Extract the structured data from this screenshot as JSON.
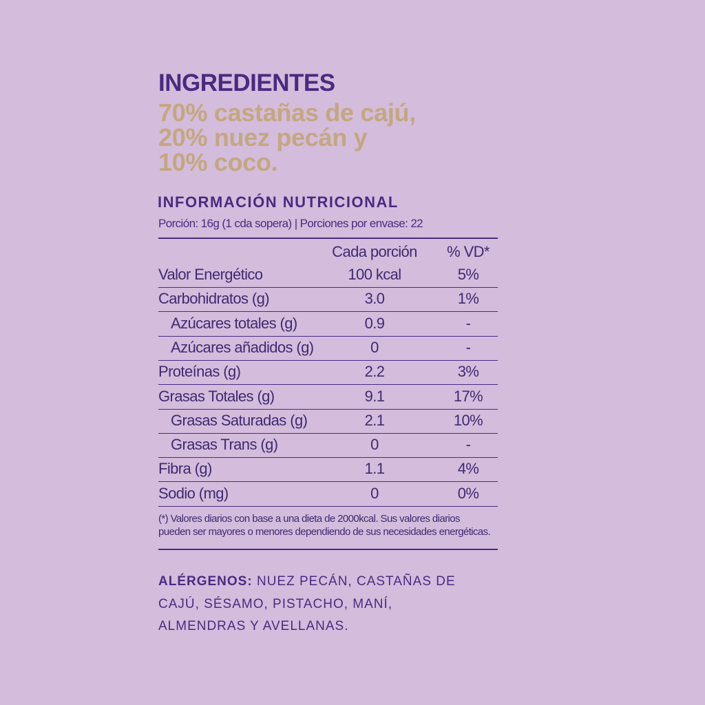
{
  "ingredients": {
    "title": "INGREDIENTES",
    "lines": [
      "70% castañas de cajú,",
      "20% nuez pecán y",
      "10% coco."
    ]
  },
  "nutrition": {
    "title": "INFORMACIÓN NUTRICIONAL",
    "serving": "Porción: 16g (1 cda sopera) | Porciones por envase: 22",
    "header": [
      "Cada porción",
      "% VD*"
    ],
    "rows": [
      {
        "label": "Valor Energético",
        "amount": "100 kcal",
        "vd": "5%",
        "level": 0
      },
      {
        "label": "Carbohidratos (g)",
        "amount": "3.0",
        "vd": "1%",
        "level": 0
      },
      {
        "label": "Azúcares totales (g)",
        "amount": "0.9",
        "vd": "-",
        "level": 1
      },
      {
        "label": "Azúcares añadidos (g)",
        "amount": "0",
        "vd": "-",
        "level": 1
      },
      {
        "label": "Proteínas (g)",
        "amount": "2.2",
        "vd": "3%",
        "level": 0
      },
      {
        "label": "Grasas Totales (g)",
        "amount": "9.1",
        "vd": "17%",
        "level": 0
      },
      {
        "label": "Grasas Saturadas (g)",
        "amount": "2.1",
        "vd": "10%",
        "level": 1
      },
      {
        "label": "Grasas Trans (g)",
        "amount": "0",
        "vd": "-",
        "level": 1
      },
      {
        "label": "Fibra (g)",
        "amount": "1.1",
        "vd": "4%",
        "level": 0
      },
      {
        "label": "Sodio (mg)",
        "amount": "0",
        "vd": "0%",
        "level": 0
      }
    ],
    "footnote": [
      "(*) Valores diarios con base a una dieta de 2000kcal. Sus valores diarios",
      "pueden ser mayores o menores dependiendo de sus necesidades energéticas."
    ]
  },
  "allergens": {
    "label": "ALÉRGENOS:",
    "lines": [
      "NUEZ PECÁN, CASTAÑAS DE",
      "CAJÚ, SÉSAMO, PISTACHO, MANÍ,",
      "ALMENDRAS Y AVELLANAS."
    ]
  }
}
